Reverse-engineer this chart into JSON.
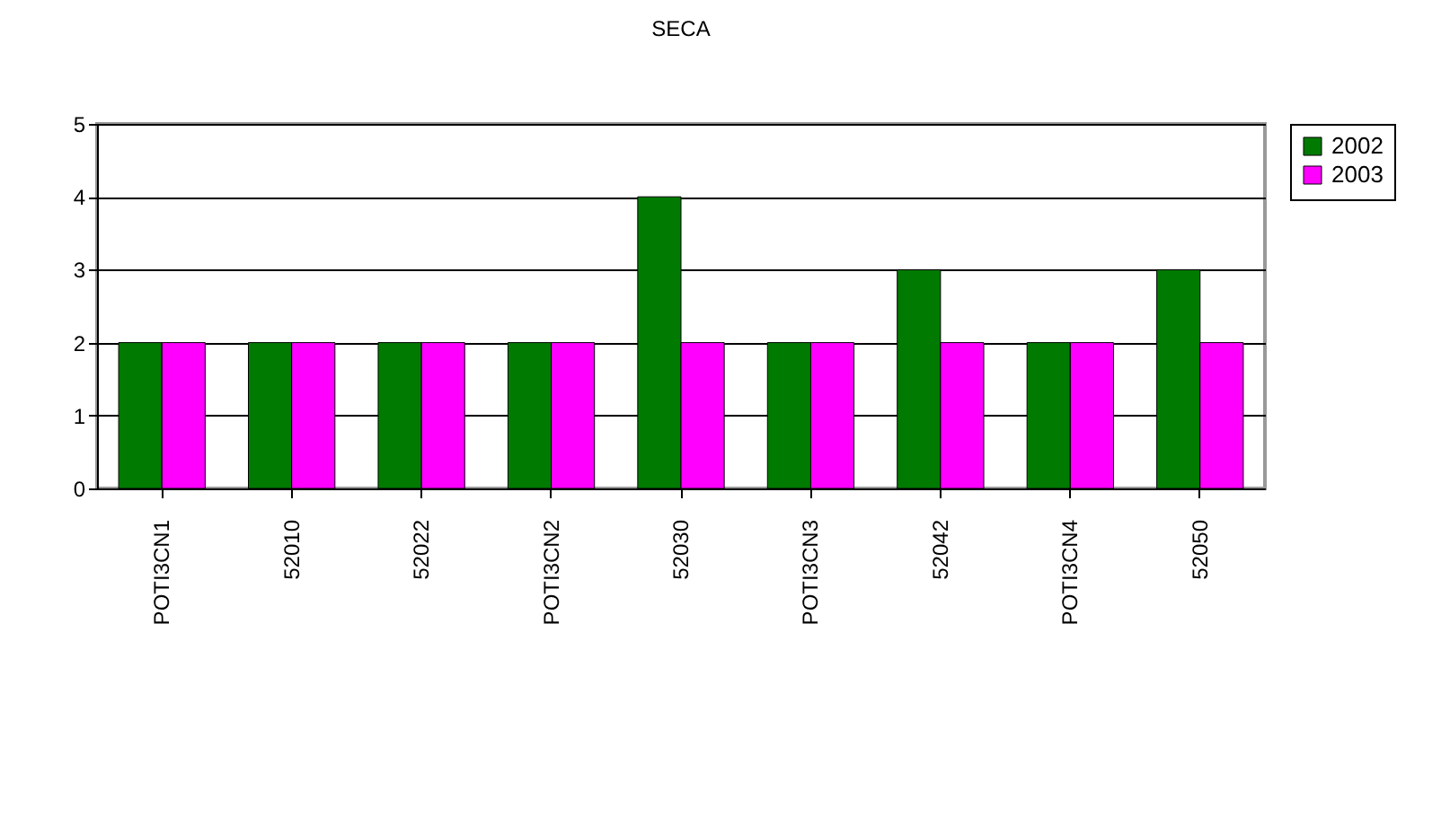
{
  "chart_data": {
    "type": "bar",
    "title": "SECA",
    "categories": [
      "POTI3CN1",
      "52010",
      "52022",
      "POTI3CN2",
      "52030",
      "POTI3CN3",
      "52042",
      "POTI3CN4",
      "52050"
    ],
    "series": [
      {
        "name": "2002",
        "color": "#007a00",
        "values": [
          2,
          2,
          2,
          2,
          4,
          2,
          3,
          2,
          3
        ]
      },
      {
        "name": "2003",
        "color": "#ff00ff",
        "values": [
          2,
          2,
          2,
          2,
          2,
          2,
          2,
          2,
          2
        ]
      }
    ],
    "ylim": [
      0,
      5
    ],
    "yticks": [
      0,
      1,
      2,
      3,
      4,
      5
    ],
    "grid": "y",
    "legend": "right"
  }
}
